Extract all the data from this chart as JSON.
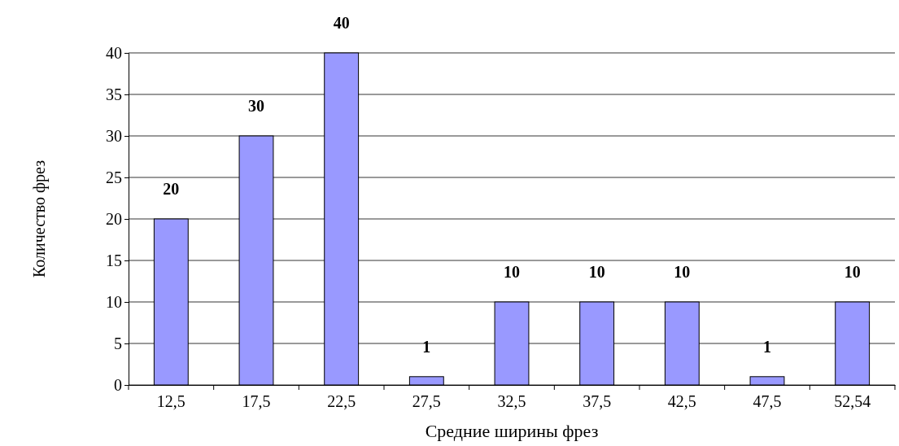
{
  "chart_data": {
    "type": "bar",
    "xlabel": "Средние ширины фрез",
    "ylabel": "Количество фрез",
    "categories": [
      "12,5",
      "17,5",
      "22,5",
      "27,5",
      "32,5",
      "37,5",
      "42,5",
      "47,5",
      "52,54"
    ],
    "values": [
      20,
      30,
      40,
      1,
      10,
      10,
      10,
      1,
      10
    ],
    "color": "#9999ff",
    "ylim": [
      0,
      40
    ],
    "yticks": [
      0,
      5,
      10,
      15,
      20,
      25,
      30,
      35,
      40
    ],
    "grid": "y",
    "data_labels": true
  }
}
